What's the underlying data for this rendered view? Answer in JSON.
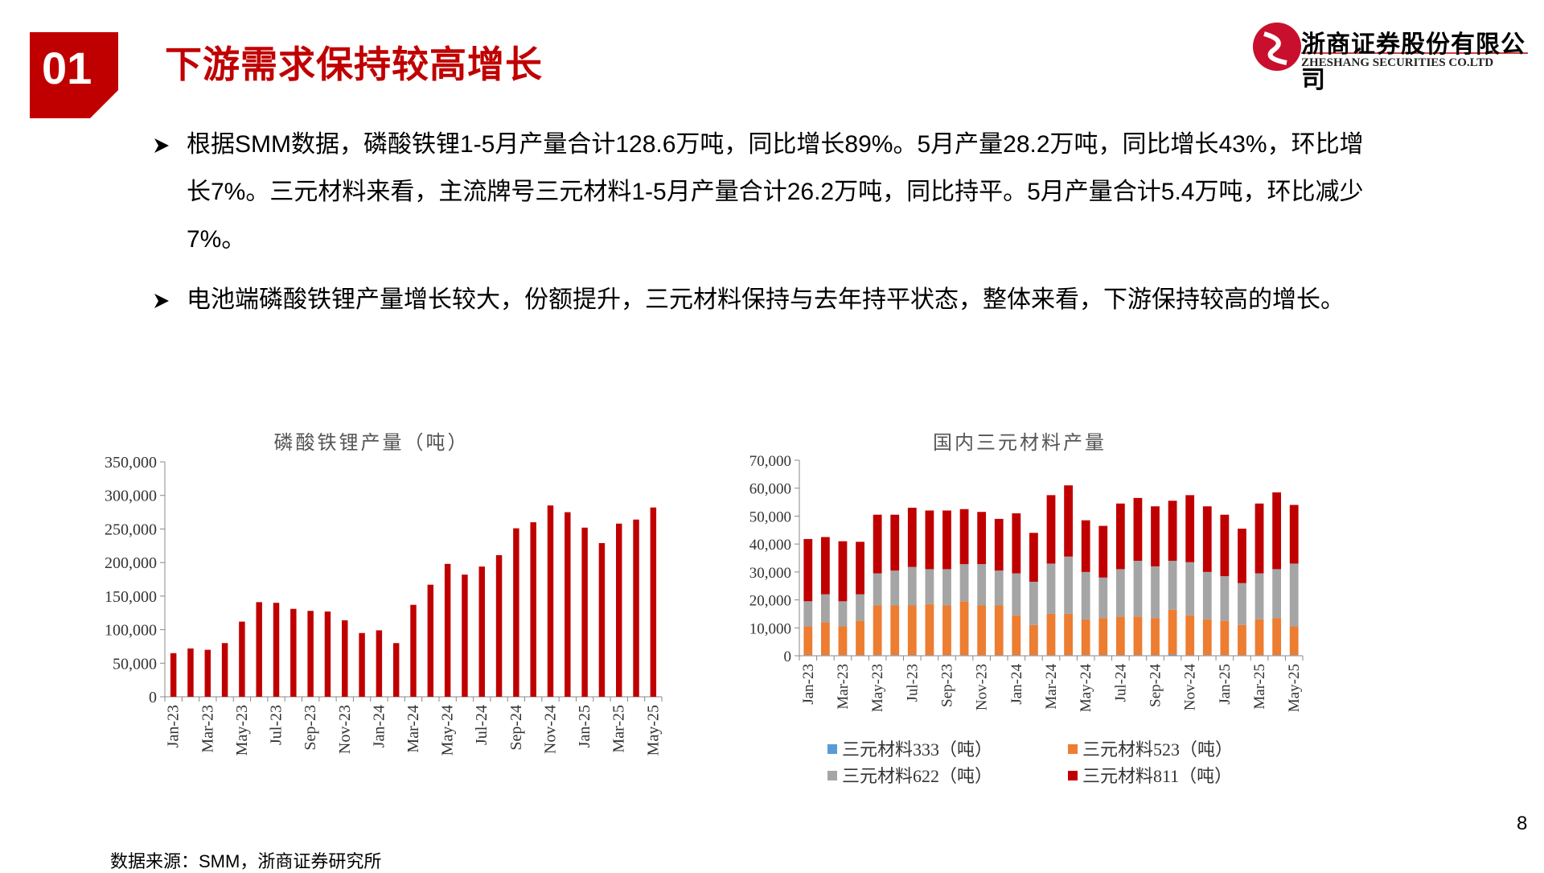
{
  "header": {
    "number": "01",
    "title": "下游需求保持较高增长"
  },
  "logo": {
    "name": "浙商证券股份有限公司",
    "name_en": "ZHESHANG SECURITIES CO.LTD"
  },
  "bullets": [
    "根据SMM数据，磷酸铁锂1-5月产量合计128.6万吨，同比增长89%。5月产量28.2万吨，同比增长43%，环比增长7%。三元材料来看，主流牌号三元材料1-5月产量合计26.2万吨，同比持平。5月产量合计5.4万吨，环比减少7%。",
    "电池端磷酸铁锂产量增长较大，份额提升，三元材料保持与去年持平状态，整体来看，下游保持较高的增长。"
  ],
  "chart_data": [
    {
      "type": "bar",
      "title": "磷酸铁锂产量（吨）",
      "categories": [
        "Jan-23",
        null,
        "Mar-23",
        null,
        "May-23",
        null,
        "Jul-23",
        null,
        "Sep-23",
        null,
        "Nov-23",
        null,
        "Jan-24",
        null,
        "Mar-24",
        null,
        "May-24",
        null,
        "Jul-24",
        null,
        "Sep-24",
        null,
        "Nov-24",
        null,
        "Jan-25",
        null,
        "Mar-25",
        null,
        "May-25"
      ],
      "values": [
        65000,
        72000,
        70000,
        80000,
        112000,
        141000,
        140000,
        131000,
        128000,
        127000,
        114000,
        95000,
        99000,
        80000,
        137000,
        167000,
        198000,
        182000,
        194000,
        211000,
        251000,
        260000,
        285000,
        275000,
        252000,
        229000,
        258000,
        264000,
        282000
      ],
      "color": "#c00000",
      "ylim": [
        0,
        350000
      ],
      "yticks": [
        0,
        {
          "value": 50000,
          "label": "50,000"
        },
        {
          "value": 100000,
          "label": "100,000"
        },
        {
          "value": 150000,
          "label": "150,000"
        },
        {
          "value": 200000,
          "label": "200,000"
        },
        {
          "value": 250000,
          "label": "250,000"
        },
        {
          "value": 300000,
          "label": "300,000"
        },
        {
          "value": 350000,
          "label": "350,000"
        }
      ]
    },
    {
      "type": "stacked_bar",
      "title": "国内三元材料产量",
      "categories": [
        "Jan-23",
        null,
        "Mar-23",
        null,
        "May-23",
        null,
        "Jul-23",
        null,
        "Sep-23",
        null,
        "Nov-23",
        null,
        "Jan-24",
        null,
        "Mar-24",
        null,
        "May-24",
        null,
        "Jul-24",
        null,
        "Sep-24",
        null,
        "Nov-24",
        null,
        "Jan-25",
        null,
        "Mar-25",
        null,
        "May-25"
      ],
      "series": [
        {
          "name": "三元材料333（吨）",
          "color": "#5b9bd5",
          "values": [
            200,
            200,
            200,
            200,
            200,
            200,
            200,
            200,
            200,
            200,
            200,
            200,
            200,
            200,
            200,
            200,
            200,
            200,
            200,
            200,
            200,
            400,
            200,
            200,
            200,
            200,
            200,
            200,
            200
          ]
        },
        {
          "name": "三元材料523（吨）",
          "color": "#ed7d31",
          "values": [
            10300,
            11800,
            10300,
            12300,
            17800,
            17800,
            17800,
            18300,
            17800,
            19300,
            17800,
            17800,
            14300,
            10800,
            14800,
            14800,
            12800,
            13300,
            13800,
            13800,
            13300,
            16100,
            14300,
            12800,
            12300,
            10800,
            12800,
            13300,
            10300
          ]
        },
        {
          "name": "三元材料622（吨）",
          "color": "#a5a5a5",
          "values": [
            9000,
            10000,
            9000,
            9500,
            11500,
            12500,
            13800,
            12500,
            13000,
            13300,
            14800,
            12500,
            15000,
            15500,
            18000,
            20500,
            17000,
            14500,
            17000,
            20000,
            18500,
            17500,
            19000,
            17000,
            16000,
            15000,
            16500,
            17500,
            22500
          ]
        },
        {
          "name": "三元材料811（吨）",
          "color": "#c00000",
          "values": [
            22300,
            20500,
            21500,
            18800,
            21000,
            20000,
            21200,
            21000,
            21000,
            19700,
            18700,
            18500,
            21500,
            17500,
            24500,
            25500,
            18500,
            18500,
            23500,
            22500,
            21500,
            21500,
            24000,
            23500,
            22000,
            19500,
            25000,
            27500,
            21000
          ]
        }
      ],
      "legend": "bottom",
      "ylim": [
        0,
        70000
      ],
      "yticks": [
        0,
        {
          "value": 10000,
          "label": "10,000"
        },
        {
          "value": 20000,
          "label": "20,000"
        },
        {
          "value": 30000,
          "label": "30,000"
        },
        {
          "value": 40000,
          "label": "40,000"
        },
        {
          "value": 50000,
          "label": "50,000"
        },
        {
          "value": 60000,
          "label": "60,000"
        },
        {
          "value": 70000,
          "label": "70,000"
        }
      ]
    }
  ],
  "footer": {
    "source": "数据来源：SMM，浙商证券研究所",
    "page_number": "8"
  }
}
